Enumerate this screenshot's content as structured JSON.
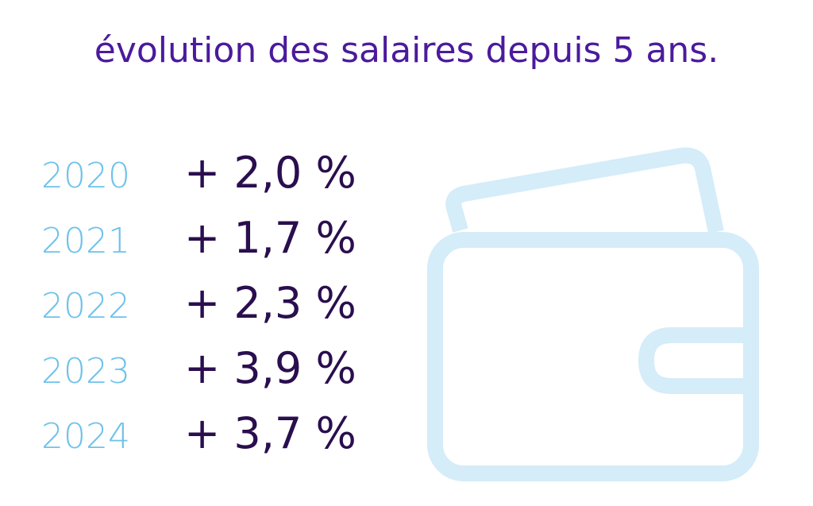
{
  "header": {
    "title": "évolution des salaires depuis 5 ans."
  },
  "rows": [
    {
      "year": "2020",
      "value": "+ 2,0 %"
    },
    {
      "year": "2021",
      "value": "+ 1,7 %"
    },
    {
      "year": "2022",
      "value": "+ 2,3 %"
    },
    {
      "year": "2023",
      "value": "+ 3,9 %"
    },
    {
      "year": "2024",
      "value": "+ 3,7 %"
    }
  ]
}
